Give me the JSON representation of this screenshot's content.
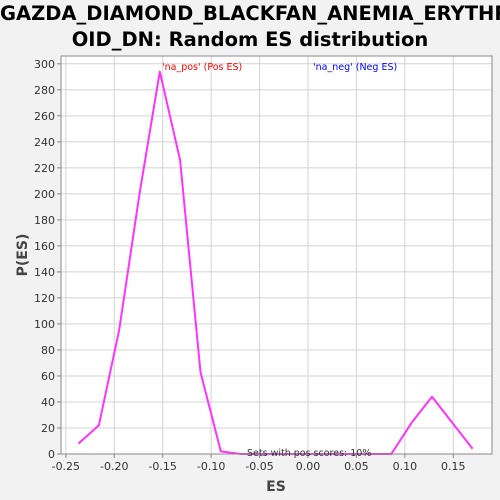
{
  "chart_data": {
    "type": "line",
    "title_lines": [
      "GAZDA_DIAMOND_BLACKFAN_ANEMIA_ERYTHR",
      "OID_DN: Random ES distribution"
    ],
    "xlabel": "ES",
    "ylabel": "P(ES)",
    "xlim": [
      -0.255,
      0.19
    ],
    "ylim": [
      0,
      306
    ],
    "xticks": [
      "-0.25",
      "-0.20",
      "-0.15",
      "-0.10",
      "-0.05",
      "0.00",
      "0.05",
      "0.10",
      "0.15"
    ],
    "xtick_values": [
      -0.25,
      -0.2,
      -0.15,
      -0.1,
      -0.05,
      0.0,
      0.05,
      0.1,
      0.15
    ],
    "yticks": [
      "0",
      "20",
      "40",
      "60",
      "80",
      "100",
      "120",
      "140",
      "160",
      "180",
      "200",
      "220",
      "240",
      "260",
      "280",
      "300"
    ],
    "ytick_values": [
      0,
      20,
      40,
      60,
      80,
      100,
      120,
      140,
      160,
      180,
      200,
      220,
      240,
      260,
      280,
      300
    ],
    "grid": true,
    "series": [
      {
        "color": "#ff33ff",
        "x": [
          -0.237,
          -0.216,
          -0.195,
          -0.174,
          -0.153,
          -0.132,
          -0.111,
          -0.09,
          -0.069,
          -0.048,
          -0.027,
          -0.006,
          0.015,
          0.036,
          0.057,
          0.078,
          0.086,
          0.107,
          0.128,
          0.149,
          0.17
        ],
        "y": [
          8,
          22,
          95,
          200,
          294,
          226,
          63,
          2,
          0,
          0,
          0,
          0,
          0,
          0,
          0,
          0,
          0,
          24,
          44,
          24,
          4
        ]
      }
    ],
    "legend": [
      {
        "label": "'na_pos' (Pos ES)",
        "color": "#ff0000"
      },
      {
        "label": "'na_neg' (Neg ES)",
        "color": "#0000ff"
      }
    ],
    "annotation": "Sets with pos scores: 10%"
  }
}
